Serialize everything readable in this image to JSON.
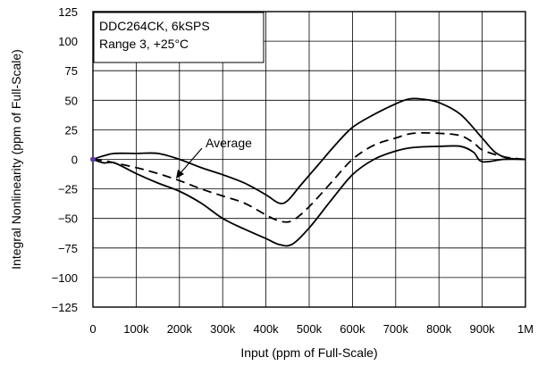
{
  "chart_data": {
    "type": "line",
    "xlabel": "Input (ppm of Full-Scale)",
    "ylabel": "Integral Nonlinearity (ppm of Full-Scale)",
    "xlim": [
      0,
      1000000
    ],
    "ylim": [
      -125,
      125
    ],
    "x_ticks": [
      0,
      100000,
      200000,
      300000,
      400000,
      500000,
      600000,
      700000,
      800000,
      900000,
      1000000
    ],
    "x_tick_labels": [
      "0",
      "100k",
      "200k",
      "300k",
      "400k",
      "500k",
      "600k",
      "700k",
      "800k",
      "900k",
      "1M"
    ],
    "y_ticks": [
      125,
      100,
      75,
      50,
      25,
      0,
      -25,
      -50,
      -75,
      -100,
      -125
    ],
    "y_tick_labels": [
      "125",
      "100",
      "75",
      "50",
      "25",
      "0",
      "−25",
      "−50",
      "−75",
      "−100",
      "−125"
    ],
    "grid": true,
    "legend_box_lines": [
      "DDC264CK, 6kSPS",
      "Range 3, +25°C"
    ],
    "annotation": "Average",
    "series": [
      {
        "style": "solid",
        "x": [
          0,
          25000,
          50000,
          100000,
          150000,
          200000,
          250000,
          300000,
          350000,
          400000,
          430000,
          450000,
          480000,
          520000,
          560000,
          600000,
          650000,
          700000,
          730000,
          760000,
          800000,
          850000,
          900000,
          930000,
          960000,
          1000000
        ],
        "y": [
          0,
          3,
          5,
          5,
          5,
          0,
          -7,
          -13,
          -20,
          -30,
          -37,
          -35,
          -22,
          -5,
          12,
          27,
          38,
          47,
          51,
          51,
          48,
          38,
          18,
          6,
          1,
          0
        ]
      },
      {
        "name": "Average",
        "style": "dashed",
        "x": [
          0,
          25000,
          50000,
          100000,
          150000,
          200000,
          250000,
          300000,
          350000,
          400000,
          430000,
          460000,
          500000,
          550000,
          600000,
          650000,
          700000,
          740000,
          800000,
          850000,
          880000,
          900000,
          940000,
          970000,
          1000000
        ],
        "y": [
          0,
          -1,
          -3,
          -7,
          -12,
          -18,
          -25,
          -31,
          -37,
          -47,
          -52,
          -52,
          -40,
          -20,
          0,
          12,
          18,
          22,
          22,
          20,
          14,
          8,
          3,
          1,
          0
        ]
      },
      {
        "style": "solid",
        "x": [
          0,
          25000,
          50000,
          100000,
          150000,
          200000,
          250000,
          300000,
          350000,
          400000,
          430000,
          460000,
          500000,
          550000,
          600000,
          650000,
          700000,
          740000,
          800000,
          850000,
          880000,
          900000,
          950000,
          1000000
        ],
        "y": [
          0,
          -3,
          -3,
          -12,
          -20,
          -27,
          -37,
          -50,
          -59,
          -67,
          -72,
          -72,
          -58,
          -35,
          -13,
          0,
          7,
          10,
          11,
          11,
          6,
          -2,
          0,
          0
        ]
      }
    ]
  }
}
